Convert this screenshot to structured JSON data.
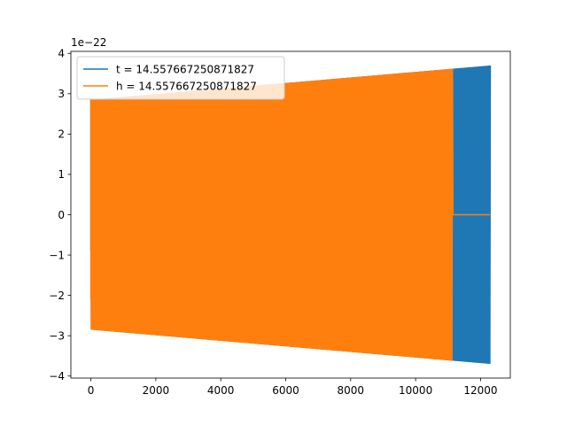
{
  "chart_data": {
    "type": "line",
    "title": "",
    "xlabel": "",
    "ylabel": "",
    "y_offset_text": "1e−22",
    "xlim": [
      -615,
      12915
    ],
    "ylim": [
      -4.05,
      4.05
    ],
    "x_ticks": [
      0,
      2000,
      4000,
      6000,
      8000,
      10000,
      12000
    ],
    "x_tick_labels": [
      "0",
      "2000",
      "4000",
      "6000",
      "8000",
      "10000",
      "12000"
    ],
    "y_ticks": [
      -4,
      -3,
      -2,
      -1,
      0,
      1,
      2,
      3,
      4
    ],
    "y_tick_labels": [
      "−4",
      "−3",
      "−2",
      "−1",
      "0",
      "1",
      "2",
      "3",
      "4"
    ],
    "grid": false,
    "legend_position": "upper-left",
    "series": [
      {
        "name": "t = 14.557667250871827",
        "color": "#1f77b4",
        "style": "oscillation",
        "x_start": 0,
        "x_end": 12300,
        "x_zero_after": null,
        "amplitude_start": 2.85,
        "amplitude_end": 3.7,
        "initial_value": -0.9,
        "cycles": 420
      },
      {
        "name": "h = 14.557667250871827",
        "color": "#ff7f0e",
        "style": "oscillation",
        "x_start": 0,
        "x_end": 12300,
        "x_zero_after": 11150,
        "amplitude_start": 2.85,
        "amplitude_end": 3.7,
        "initial_value": -2.1,
        "cycles": 380
      }
    ]
  }
}
